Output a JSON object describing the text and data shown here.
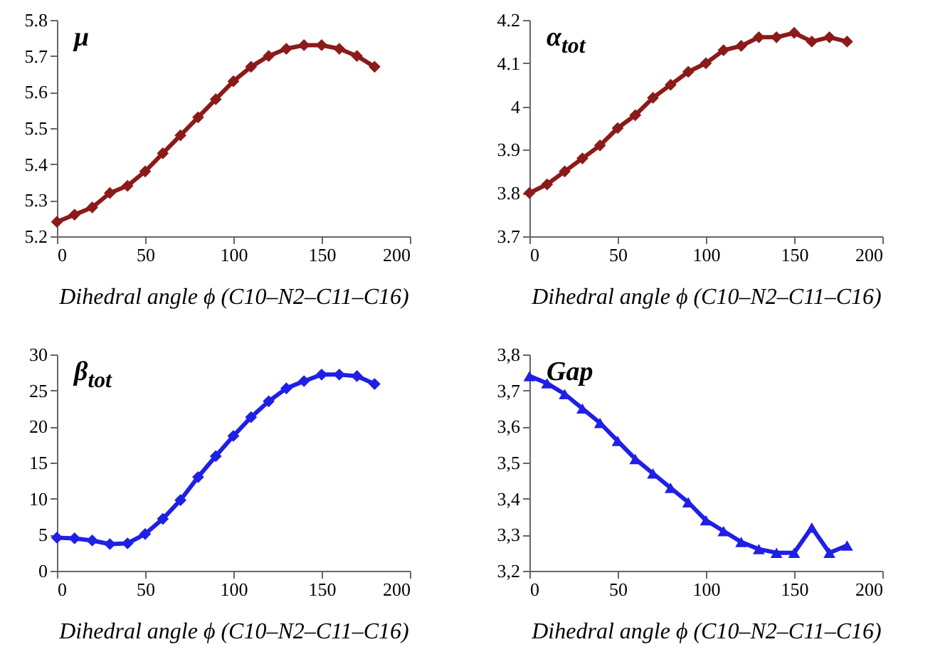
{
  "chart_data": [
    {
      "type": "line",
      "title": "μ",
      "xlabel": "Dihedral angle ϕ (C10–N2–C11–C16)",
      "x": [
        0,
        10,
        20,
        30,
        40,
        50,
        60,
        70,
        80,
        90,
        100,
        110,
        120,
        130,
        140,
        150,
        160,
        170,
        180
      ],
      "marker": "diamond",
      "grid": false,
      "xlim": [
        0,
        200
      ],
      "xticks": [
        0,
        50,
        100,
        150,
        200
      ],
      "ylim": [
        5.2,
        5.8
      ],
      "yticks": [
        5.2,
        5.3,
        5.4,
        5.5,
        5.6,
        5.7,
        5.8
      ],
      "series": [
        {
          "color": "#8b1a1a",
          "values": [
            5.24,
            5.26,
            5.28,
            5.32,
            5.34,
            5.38,
            5.43,
            5.48,
            5.53,
            5.58,
            5.63,
            5.67,
            5.7,
            5.72,
            5.73,
            5.73,
            5.72,
            5.7,
            5.67
          ]
        }
      ]
    },
    {
      "type": "line",
      "title": "α$_{tot}$",
      "xlabel": "Dihedral angle ϕ (C10–N2–C11–C16)",
      "x": [
        0,
        10,
        20,
        30,
        40,
        50,
        60,
        70,
        80,
        90,
        100,
        110,
        120,
        130,
        140,
        150,
        160,
        170,
        180
      ],
      "marker": "diamond",
      "grid": false,
      "xlim": [
        0,
        200
      ],
      "xticks": [
        0,
        50,
        100,
        150,
        200
      ],
      "ylim": [
        3.7,
        4.2
      ],
      "yticks": [
        3.7,
        3.8,
        3.9,
        4,
        4.1,
        4.2
      ],
      "series": [
        {
          "color": "#8b1a1a",
          "values": [
            3.8,
            3.82,
            3.85,
            3.88,
            3.91,
            3.95,
            3.98,
            4.02,
            4.05,
            4.08,
            4.1,
            4.13,
            4.14,
            4.16,
            4.16,
            4.17,
            4.15,
            4.16,
            4.15
          ]
        }
      ]
    },
    {
      "type": "line",
      "title": "β$_{tot}$",
      "xlabel": "Dihedral angle ϕ (C10–N2–C11–C16)",
      "x": [
        0,
        10,
        20,
        30,
        40,
        50,
        60,
        70,
        80,
        90,
        100,
        110,
        120,
        130,
        140,
        150,
        160,
        170,
        180
      ],
      "marker": "diamond",
      "grid": false,
      "xlim": [
        0,
        200
      ],
      "xticks": [
        0,
        50,
        100,
        150,
        200
      ],
      "ylim": [
        0,
        30
      ],
      "yticks": [
        0,
        5,
        10,
        15,
        20,
        25,
        30
      ],
      "series": [
        {
          "color": "#1f1fe6",
          "values": [
            4.6,
            4.5,
            4.2,
            3.7,
            3.8,
            5.1,
            7.2,
            9.8,
            13,
            15.9,
            18.7,
            21.3,
            23.5,
            25.3,
            26.3,
            27.2,
            27.2,
            27,
            25.9
          ]
        }
      ]
    },
    {
      "type": "line",
      "title": "Gap",
      "xlabel": "Dihedral angle ϕ (C10–N2–C11–C16)",
      "x": [
        0,
        10,
        20,
        30,
        40,
        50,
        60,
        70,
        80,
        90,
        100,
        110,
        120,
        130,
        140,
        150,
        160,
        170,
        180
      ],
      "marker": "triangle",
      "grid": false,
      "xlim": [
        0,
        200
      ],
      "xticks": [
        0,
        50,
        100,
        150,
        200
      ],
      "ylim": [
        3.2,
        3.8
      ],
      "yticks": [
        {
          "value": 3.2,
          "label": "3,2"
        },
        {
          "value": 3.3,
          "label": "3,3"
        },
        {
          "value": 3.4,
          "label": "3,4"
        },
        {
          "value": 3.5,
          "label": "3,5"
        },
        {
          "value": 3.6,
          "label": "3,6"
        },
        {
          "value": 3.7,
          "label": "3,7"
        },
        {
          "value": 3.8,
          "label": "3,8"
        }
      ],
      "series": [
        {
          "color": "#1f1fe6",
          "values": [
            3.74,
            3.72,
            3.69,
            3.65,
            3.61,
            3.56,
            3.51,
            3.47,
            3.43,
            3.39,
            3.34,
            3.31,
            3.28,
            3.26,
            3.25,
            3.25,
            3.32,
            3.25,
            3.27
          ]
        }
      ]
    }
  ]
}
